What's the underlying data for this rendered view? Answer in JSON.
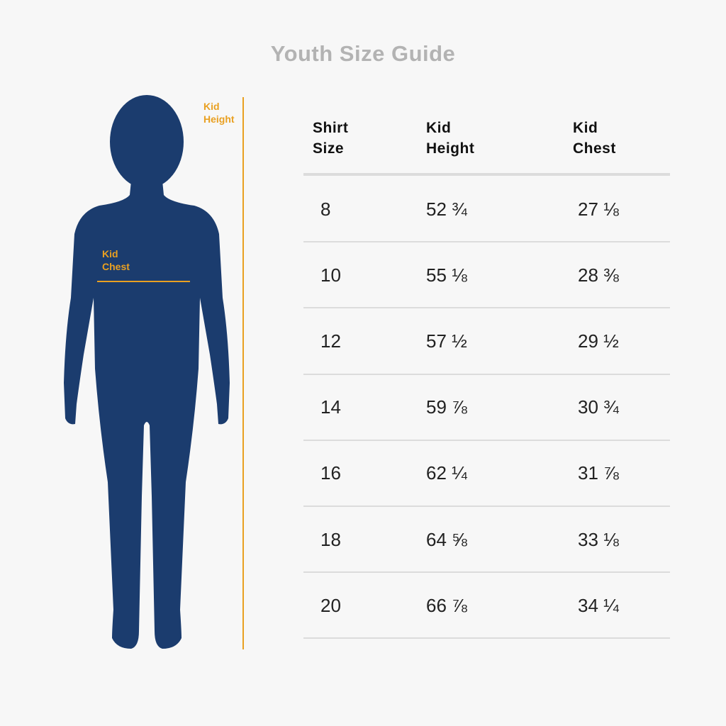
{
  "title": "Youth Size Guide",
  "figure": {
    "height_label": "Kid Height",
    "chest_label": "Kid Chest"
  },
  "table": {
    "header": [
      "Shirt Size",
      "Kid Height",
      "Kid Chest"
    ],
    "rows": [
      [
        "8",
        "52 ¾",
        "27 ⅛"
      ],
      [
        "10",
        "55 ⅛",
        "28 ⅜"
      ],
      [
        "12",
        "57 ½",
        "29 ½"
      ],
      [
        "14",
        "59 ⅞",
        "30 ¾"
      ],
      [
        "16",
        "62 ¼",
        "31 ⅞"
      ],
      [
        "18",
        "64 ⅝",
        "33 ⅛"
      ],
      [
        "20",
        "66 ⅞",
        "34 ¼"
      ]
    ]
  }
}
